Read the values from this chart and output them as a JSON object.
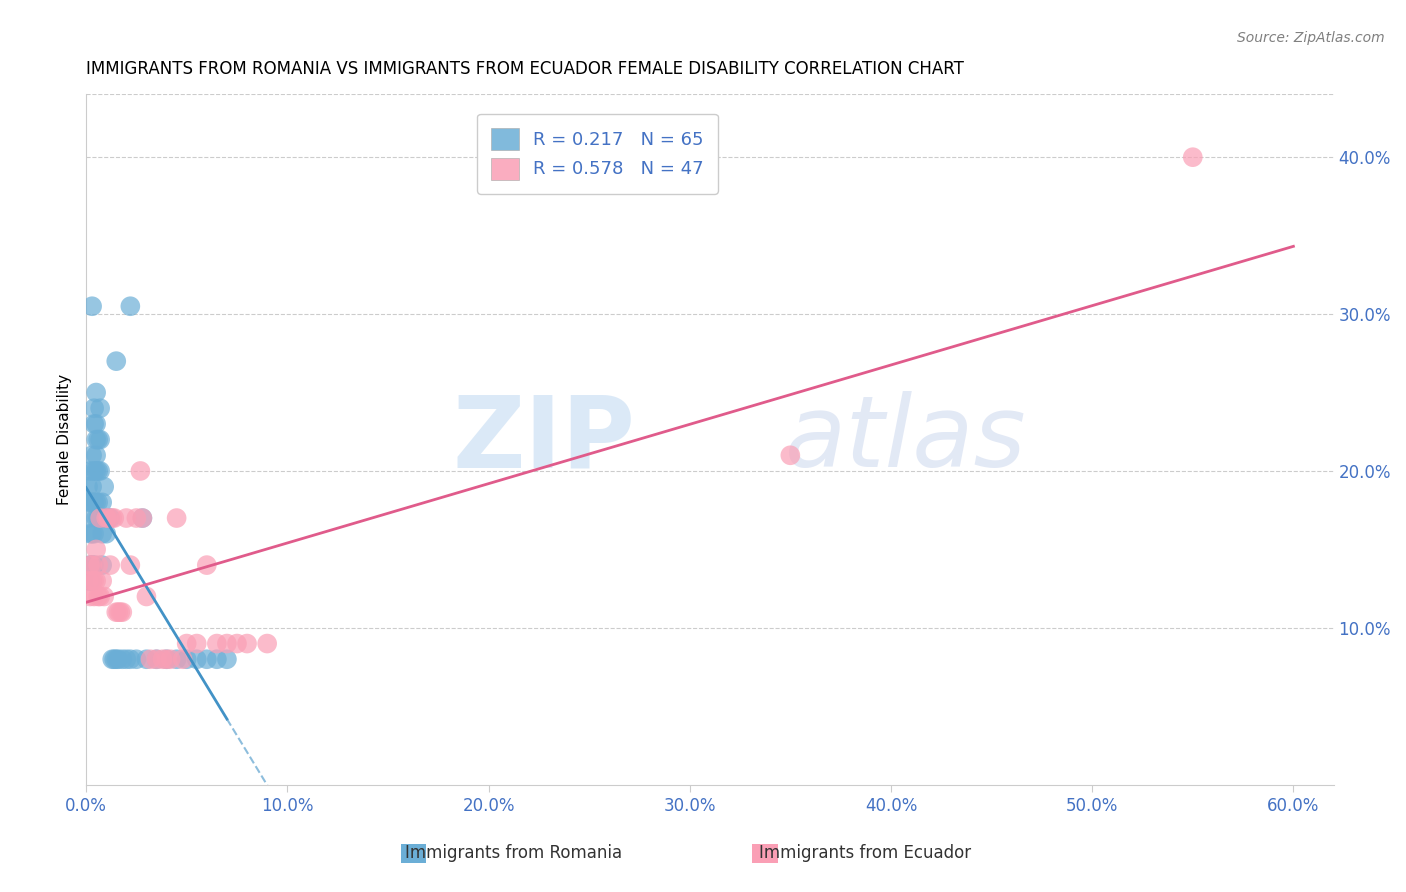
{
  "title": "IMMIGRANTS FROM ROMANIA VS IMMIGRANTS FROM ECUADOR FEMALE DISABILITY CORRELATION CHART",
  "source": "Source: ZipAtlas.com",
  "ylabel": "Female Disability",
  "watermark_zip": "ZIP",
  "watermark_atlas": "atlas",
  "romania": {
    "label": "Immigrants from Romania",
    "R": 0.217,
    "N": 65,
    "color": "#6baed6",
    "line_color": "#4292c6",
    "x": [
      0.001,
      0.001,
      0.001,
      0.002,
      0.002,
      0.002,
      0.002,
      0.002,
      0.003,
      0.003,
      0.003,
      0.003,
      0.003,
      0.003,
      0.004,
      0.004,
      0.004,
      0.004,
      0.004,
      0.005,
      0.005,
      0.005,
      0.005,
      0.005,
      0.005,
      0.006,
      0.006,
      0.006,
      0.006,
      0.007,
      0.007,
      0.007,
      0.007,
      0.008,
      0.008,
      0.008,
      0.009,
      0.009,
      0.01,
      0.01,
      0.011,
      0.012,
      0.013,
      0.014,
      0.015,
      0.016,
      0.018,
      0.02,
      0.022,
      0.025,
      0.028,
      0.03,
      0.035,
      0.04,
      0.045,
      0.05,
      0.055,
      0.06,
      0.065,
      0.07,
      0.003,
      0.022,
      0.015,
      0.005,
      0.004
    ],
    "y": [
      0.13,
      0.17,
      0.19,
      0.2,
      0.18,
      0.16,
      0.14,
      0.13,
      0.21,
      0.19,
      0.18,
      0.16,
      0.14,
      0.13,
      0.23,
      0.2,
      0.18,
      0.16,
      0.14,
      0.25,
      0.23,
      0.21,
      0.2,
      0.18,
      0.17,
      0.22,
      0.2,
      0.18,
      0.17,
      0.24,
      0.22,
      0.2,
      0.17,
      0.18,
      0.16,
      0.14,
      0.19,
      0.17,
      0.17,
      0.16,
      0.17,
      0.17,
      0.08,
      0.08,
      0.08,
      0.08,
      0.08,
      0.08,
      0.08,
      0.08,
      0.17,
      0.08,
      0.08,
      0.08,
      0.08,
      0.08,
      0.08,
      0.08,
      0.08,
      0.08,
      0.305,
      0.305,
      0.27,
      0.22,
      0.24
    ]
  },
  "ecuador": {
    "label": "Immigrants from Ecuador",
    "R": 0.578,
    "N": 47,
    "color": "#fa9fb5",
    "line_color": "#e05b8b",
    "x": [
      0.001,
      0.002,
      0.002,
      0.003,
      0.003,
      0.004,
      0.004,
      0.005,
      0.005,
      0.006,
      0.006,
      0.007,
      0.007,
      0.008,
      0.009,
      0.01,
      0.011,
      0.012,
      0.013,
      0.014,
      0.015,
      0.016,
      0.017,
      0.018,
      0.02,
      0.022,
      0.025,
      0.027,
      0.028,
      0.03,
      0.032,
      0.035,
      0.038,
      0.04,
      0.042,
      0.045,
      0.048,
      0.05,
      0.055,
      0.06,
      0.065,
      0.07,
      0.075,
      0.08,
      0.09,
      0.55,
      0.35
    ],
    "y": [
      0.13,
      0.12,
      0.14,
      0.13,
      0.14,
      0.12,
      0.13,
      0.15,
      0.13,
      0.12,
      0.14,
      0.17,
      0.12,
      0.13,
      0.12,
      0.17,
      0.17,
      0.14,
      0.17,
      0.17,
      0.11,
      0.11,
      0.11,
      0.11,
      0.17,
      0.14,
      0.17,
      0.2,
      0.17,
      0.12,
      0.08,
      0.08,
      0.08,
      0.08,
      0.08,
      0.17,
      0.08,
      0.09,
      0.09,
      0.14,
      0.09,
      0.09,
      0.09,
      0.09,
      0.09,
      0.4,
      0.21
    ]
  },
  "xlim": [
    0.0,
    0.62
  ],
  "ylim": [
    0.0,
    0.44
  ],
  "xticks": [
    0.0,
    0.1,
    0.2,
    0.3,
    0.4,
    0.5,
    0.6
  ],
  "yticks_right": [
    0.1,
    0.2,
    0.3,
    0.4
  ],
  "axis_color": "#4472c4",
  "grid_color": "#cccccc",
  "background": "#ffffff",
  "title_fontsize": 12,
  "legend_fontsize": 13
}
